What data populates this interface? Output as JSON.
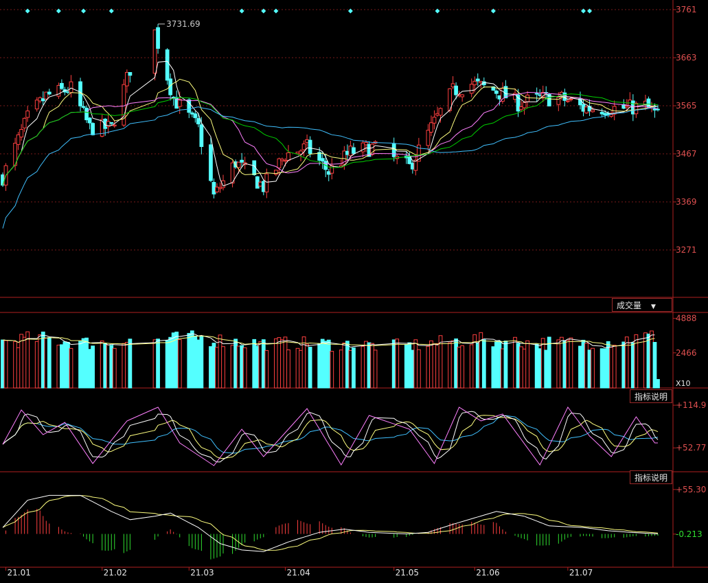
{
  "buttons": {
    "volume_indicator": "成交量",
    "indicator_help_1": "指标说明",
    "indicator_help_2": "指标说明"
  },
  "price_axis_labels": [
    "3761",
    "3663",
    "3565",
    "3467",
    "3369",
    "3271"
  ],
  "volume_axis_labels": [
    "4888",
    "2466",
    "X10"
  ],
  "kdj_axis_labels": [
    "+114.9",
    "+52.77"
  ],
  "macd_axis_labels": [
    "+55.30",
    "-0.213"
  ],
  "date_labels": [
    "21.01",
    "21.02",
    "21.03",
    "21.04",
    "21.05",
    "21.06",
    "21.07"
  ],
  "peak_annotation": "3731.69",
  "colors": {
    "up": "#ff4040",
    "down": "#54ffff",
    "grid": "#7a1a1a",
    "border": "#b02020",
    "axis_text": "#e05050",
    "ma5": "#ffffff",
    "ma10": "#ffff80",
    "ma20": "#ff80ff",
    "ma30": "#00d000",
    "ma60": "#40c0ff",
    "diamond": "#54ffff"
  },
  "chart_data": [
    {
      "type": "candlestick",
      "title": "",
      "ylim": [
        3271,
        3761
      ],
      "ticks": [
        3761,
        3663,
        3565,
        3467,
        3369,
        3271
      ],
      "date_ticks": [
        "21.01",
        "21.02",
        "21.03",
        "21.04",
        "21.05",
        "21.06",
        "21.07"
      ],
      "x_range": [
        "2020-12-31",
        "2021-07-30"
      ],
      "max_label": "3731.69",
      "trend": [
        {
          "x": "2020-12-31",
          "y": 3420
        },
        {
          "x": "2021-01-08",
          "y": 3540
        },
        {
          "x": "2021-01-14",
          "y": 3585
        },
        {
          "x": "2021-01-22",
          "y": 3600
        },
        {
          "x": "2021-01-28",
          "y": 3520
        },
        {
          "x": "2021-02-04",
          "y": 3520
        },
        {
          "x": "2021-02-10",
          "y": 3640
        },
        {
          "x": "2021-02-18",
          "y": 3715
        },
        {
          "x": "2021-02-24",
          "y": 3580
        },
        {
          "x": "2021-03-04",
          "y": 3520
        },
        {
          "x": "2021-03-09",
          "y": 3380
        },
        {
          "x": "2021-03-16",
          "y": 3450
        },
        {
          "x": "2021-03-25",
          "y": 3400
        },
        {
          "x": "2021-04-01",
          "y": 3465
        },
        {
          "x": "2021-04-08",
          "y": 3480
        },
        {
          "x": "2021-04-15",
          "y": 3430
        },
        {
          "x": "2021-04-22",
          "y": 3470
        },
        {
          "x": "2021-04-29",
          "y": 3480
        },
        {
          "x": "2021-05-11",
          "y": 3440
        },
        {
          "x": "2021-05-18",
          "y": 3520
        },
        {
          "x": "2021-05-25",
          "y": 3595
        },
        {
          "x": "2021-05-31",
          "y": 3610
        },
        {
          "x": "2021-06-08",
          "y": 3595
        },
        {
          "x": "2021-06-15",
          "y": 3570
        },
        {
          "x": "2021-06-22",
          "y": 3580
        },
        {
          "x": "2021-06-29",
          "y": 3580
        },
        {
          "x": "2021-07-06",
          "y": 3560
        },
        {
          "x": "2021-07-13",
          "y": 3560
        },
        {
          "x": "2021-07-20",
          "y": 3560
        },
        {
          "x": "2021-07-26",
          "y": 3565
        },
        {
          "x": "2021-07-30",
          "y": 3545
        }
      ]
    },
    {
      "type": "bar",
      "title": "成交量",
      "ylim": [
        0,
        5300
      ],
      "ticks": [
        4888,
        2466
      ],
      "unit": "X10",
      "level": [
        {
          "x": "2020-12-31",
          "y": 3300
        },
        {
          "x": "2021-01-11",
          "y": 3550
        },
        {
          "x": "2021-01-28",
          "y": 3200
        },
        {
          "x": "2021-02-18",
          "y": 3450
        },
        {
          "x": "2021-03-04",
          "y": 3550
        },
        {
          "x": "2021-03-22",
          "y": 3200
        },
        {
          "x": "2021-04-12",
          "y": 3150
        },
        {
          "x": "2021-05-10",
          "y": 3000
        },
        {
          "x": "2021-05-31",
          "y": 3450
        },
        {
          "x": "2021-06-21",
          "y": 3200
        },
        {
          "x": "2021-07-12",
          "y": 3250
        },
        {
          "x": "2021-07-26",
          "y": 3650
        }
      ],
      "last_value": 600
    },
    {
      "type": "line",
      "title": "",
      "ylim": [
        20,
        118
      ],
      "ticks": [
        114.9,
        52.77
      ],
      "cycles": [
        {
          "x": "2020-12-31",
          "y": 58
        },
        {
          "x": "2021-01-06",
          "y": 108
        },
        {
          "x": "2021-01-13",
          "y": 72
        },
        {
          "x": "2021-01-20",
          "y": 90
        },
        {
          "x": "2021-01-29",
          "y": 30
        },
        {
          "x": "2021-02-09",
          "y": 92
        },
        {
          "x": "2021-02-19",
          "y": 112
        },
        {
          "x": "2021-02-26",
          "y": 60
        },
        {
          "x": "2021-03-09",
          "y": 27
        },
        {
          "x": "2021-03-18",
          "y": 80
        },
        {
          "x": "2021-03-25",
          "y": 40
        },
        {
          "x": "2021-04-08",
          "y": 110
        },
        {
          "x": "2021-04-19",
          "y": 28
        },
        {
          "x": "2021-04-28",
          "y": 100
        },
        {
          "x": "2021-05-11",
          "y": 80
        },
        {
          "x": "2021-05-19",
          "y": 30
        },
        {
          "x": "2021-05-27",
          "y": 112
        },
        {
          "x": "2021-06-03",
          "y": 92
        },
        {
          "x": "2021-06-10",
          "y": 102
        },
        {
          "x": "2021-06-22",
          "y": 28
        },
        {
          "x": "2021-07-01",
          "y": 112
        },
        {
          "x": "2021-07-08",
          "y": 70
        },
        {
          "x": "2021-07-15",
          "y": 40
        },
        {
          "x": "2021-07-23",
          "y": 98
        },
        {
          "x": "2021-07-29",
          "y": 60
        }
      ]
    },
    {
      "type": "bar",
      "title": "",
      "ylim": [
        -38,
        62
      ],
      "ticks": [
        55.3,
        -0.213
      ],
      "dif": [
        {
          "x": "2020-12-31",
          "y": 8
        },
        {
          "x": "2021-01-08",
          "y": 42
        },
        {
          "x": "2021-01-15",
          "y": 48
        },
        {
          "x": "2021-01-25",
          "y": 48
        },
        {
          "x": "2021-02-04",
          "y": 28
        },
        {
          "x": "2021-02-11",
          "y": 16
        },
        {
          "x": "2021-02-18",
          "y": 22
        },
        {
          "x": "2021-02-23",
          "y": 26
        },
        {
          "x": "2021-03-04",
          "y": 8
        },
        {
          "x": "2021-03-11",
          "y": -12
        },
        {
          "x": "2021-03-18",
          "y": -20
        },
        {
          "x": "2021-03-25",
          "y": -22
        },
        {
          "x": "2021-04-02",
          "y": -10
        },
        {
          "x": "2021-04-12",
          "y": 2
        },
        {
          "x": "2021-04-20",
          "y": 6
        },
        {
          "x": "2021-04-28",
          "y": 2
        },
        {
          "x": "2021-05-10",
          "y": 0
        },
        {
          "x": "2021-05-17",
          "y": 2
        },
        {
          "x": "2021-05-25",
          "y": 12
        },
        {
          "x": "2021-06-01",
          "y": 20
        },
        {
          "x": "2021-06-08",
          "y": 28
        },
        {
          "x": "2021-06-17",
          "y": 22
        },
        {
          "x": "2021-06-25",
          "y": 10
        },
        {
          "x": "2021-07-06",
          "y": 8
        },
        {
          "x": "2021-07-14",
          "y": 4
        },
        {
          "x": "2021-07-21",
          "y": 2
        },
        {
          "x": "2021-07-30",
          "y": 0
        }
      ]
    }
  ]
}
